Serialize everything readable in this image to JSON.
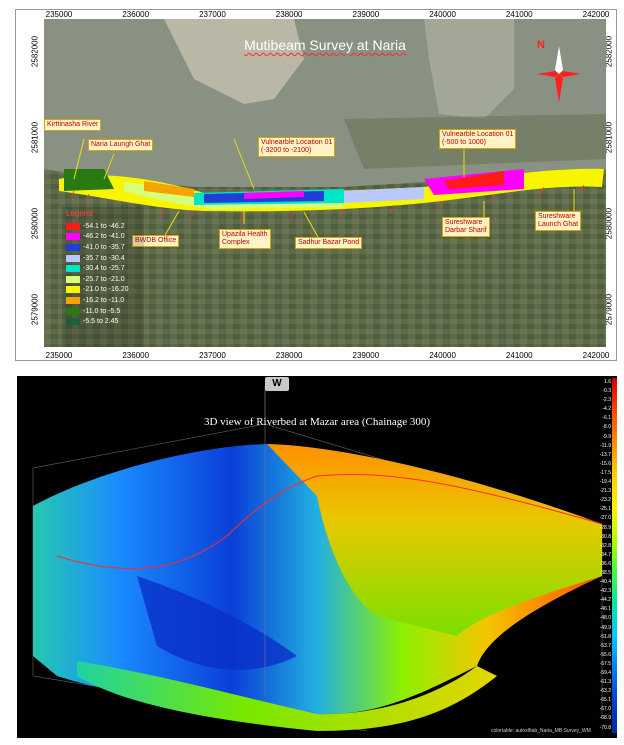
{
  "map": {
    "title": "Mutibeam Survey at Naria",
    "x_ticks": [
      "235000",
      "236000",
      "237000",
      "238000",
      "239000",
      "240000",
      "241000",
      "242000"
    ],
    "y_ticks": [
      "2582000",
      "2581000",
      "2580000",
      "2579000"
    ],
    "callouts": {
      "kirtinasha": "Kirttinasha River",
      "naria_ghat": "Naria Laungh Ghat",
      "vuln_loc_01_a_line1": "Vulnearble Location 01",
      "vuln_loc_01_a_line2": "(-3200 to -2100)",
      "vuln_loc_01_b_line1": "Vulnearble Location 01",
      "vuln_loc_01_b_line2": "(-500 to 1000)",
      "bwdb": "BWDB Office",
      "upazila_line1": "Upazila Health",
      "upazila_line2": "Complex",
      "sadhur": "Sadhur Bazar Pond",
      "sureshware_darbar_line1": "Sureshware",
      "sureshware_darbar_line2": "Darbar Sharif",
      "sureshware_launch_line1": "Sureshware",
      "sureshware_launch_line2": "Launch Ghat"
    },
    "legend": {
      "title": "Legend",
      "items": [
        {
          "label": "-54.1 to -46.2",
          "color": "#ff1a1a"
        },
        {
          "label": "-46.2 to -41.0",
          "color": "#ff00ff"
        },
        {
          "label": "-41.0 to -35.7",
          "color": "#1f3fd6"
        },
        {
          "label": "-35.7 to -30.4",
          "color": "#b9c8ff"
        },
        {
          "label": "-30.4 to -25.7",
          "color": "#00e5c8"
        },
        {
          "label": "-25.7 to -21.0",
          "color": "#d8ff7a"
        },
        {
          "label": "-21.0 to -16.20",
          "color": "#f7f500"
        },
        {
          "label": "-16.2 to -11.0",
          "color": "#f5a300"
        },
        {
          "label": "-11.0 to -5.5",
          "color": "#2a7a14"
        },
        {
          "label": "-5.5 to 2.45",
          "color": "#1e5e3a"
        }
      ]
    },
    "north_label": "N"
  },
  "view3d": {
    "title": "3D view of Riverbed at Mazar area (Chainage 300)",
    "compass_label": "W",
    "scale_labels": [
      "1.6",
      "-0.3",
      "-2.3",
      "-4.2",
      "-6.1",
      "-8.0",
      "-9.9",
      "-11.9",
      "-13.7",
      "-15.6",
      "-17.5",
      "-19.4",
      "-21.3",
      "-23.2",
      "-25.1",
      "-27.0",
      "-28.9",
      "-30.8",
      "-32.8",
      "-34.7",
      "-36.6",
      "-38.5",
      "-40.4",
      "-42.3",
      "-44.2",
      "-46.1",
      "-48.0",
      "-49.9",
      "-51.8",
      "-53.7",
      "-55.6",
      "-57.5",
      "-59.4",
      "-61.3",
      "-63.2",
      "-65.1",
      "-67.0",
      "-68.9",
      "-70.8"
    ],
    "footer": "colortable: autoxlItab_Naria_MB Survey_WM"
  }
}
